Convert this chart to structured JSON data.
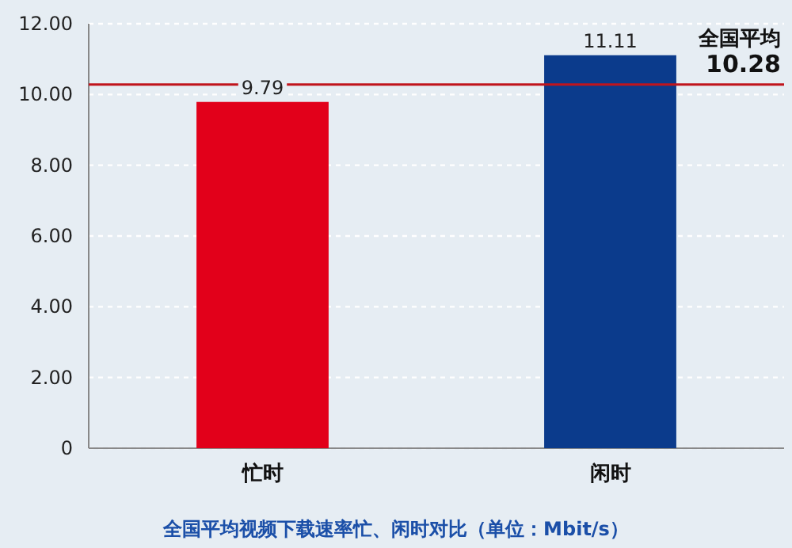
{
  "chart_data": {
    "type": "bar",
    "title": "全国平均视频下载速率忙、闲时对比（单位：Mbit/s）",
    "categories": [
      "忙时",
      "闲时"
    ],
    "values": [
      9.79,
      11.11
    ],
    "colors": [
      "#e2001a",
      "#0b3b8c"
    ],
    "data_labels": true,
    "ylim": [
      0,
      12
    ],
    "yticks": [
      0,
      {
        "value": 2,
        "label": "2.00"
      },
      {
        "value": 4,
        "label": "4.00"
      },
      {
        "value": 6,
        "label": "6.00"
      },
      {
        "value": 8,
        "label": "8.00"
      },
      {
        "value": 10,
        "label": "10.00"
      },
      {
        "value": 12,
        "label": "12.00"
      }
    ],
    "grid": "y",
    "ref_lines": [
      {
        "axis": "y",
        "value": 10.28,
        "label": "全国平均\n10.28",
        "color": "#c0141c"
      }
    ]
  }
}
